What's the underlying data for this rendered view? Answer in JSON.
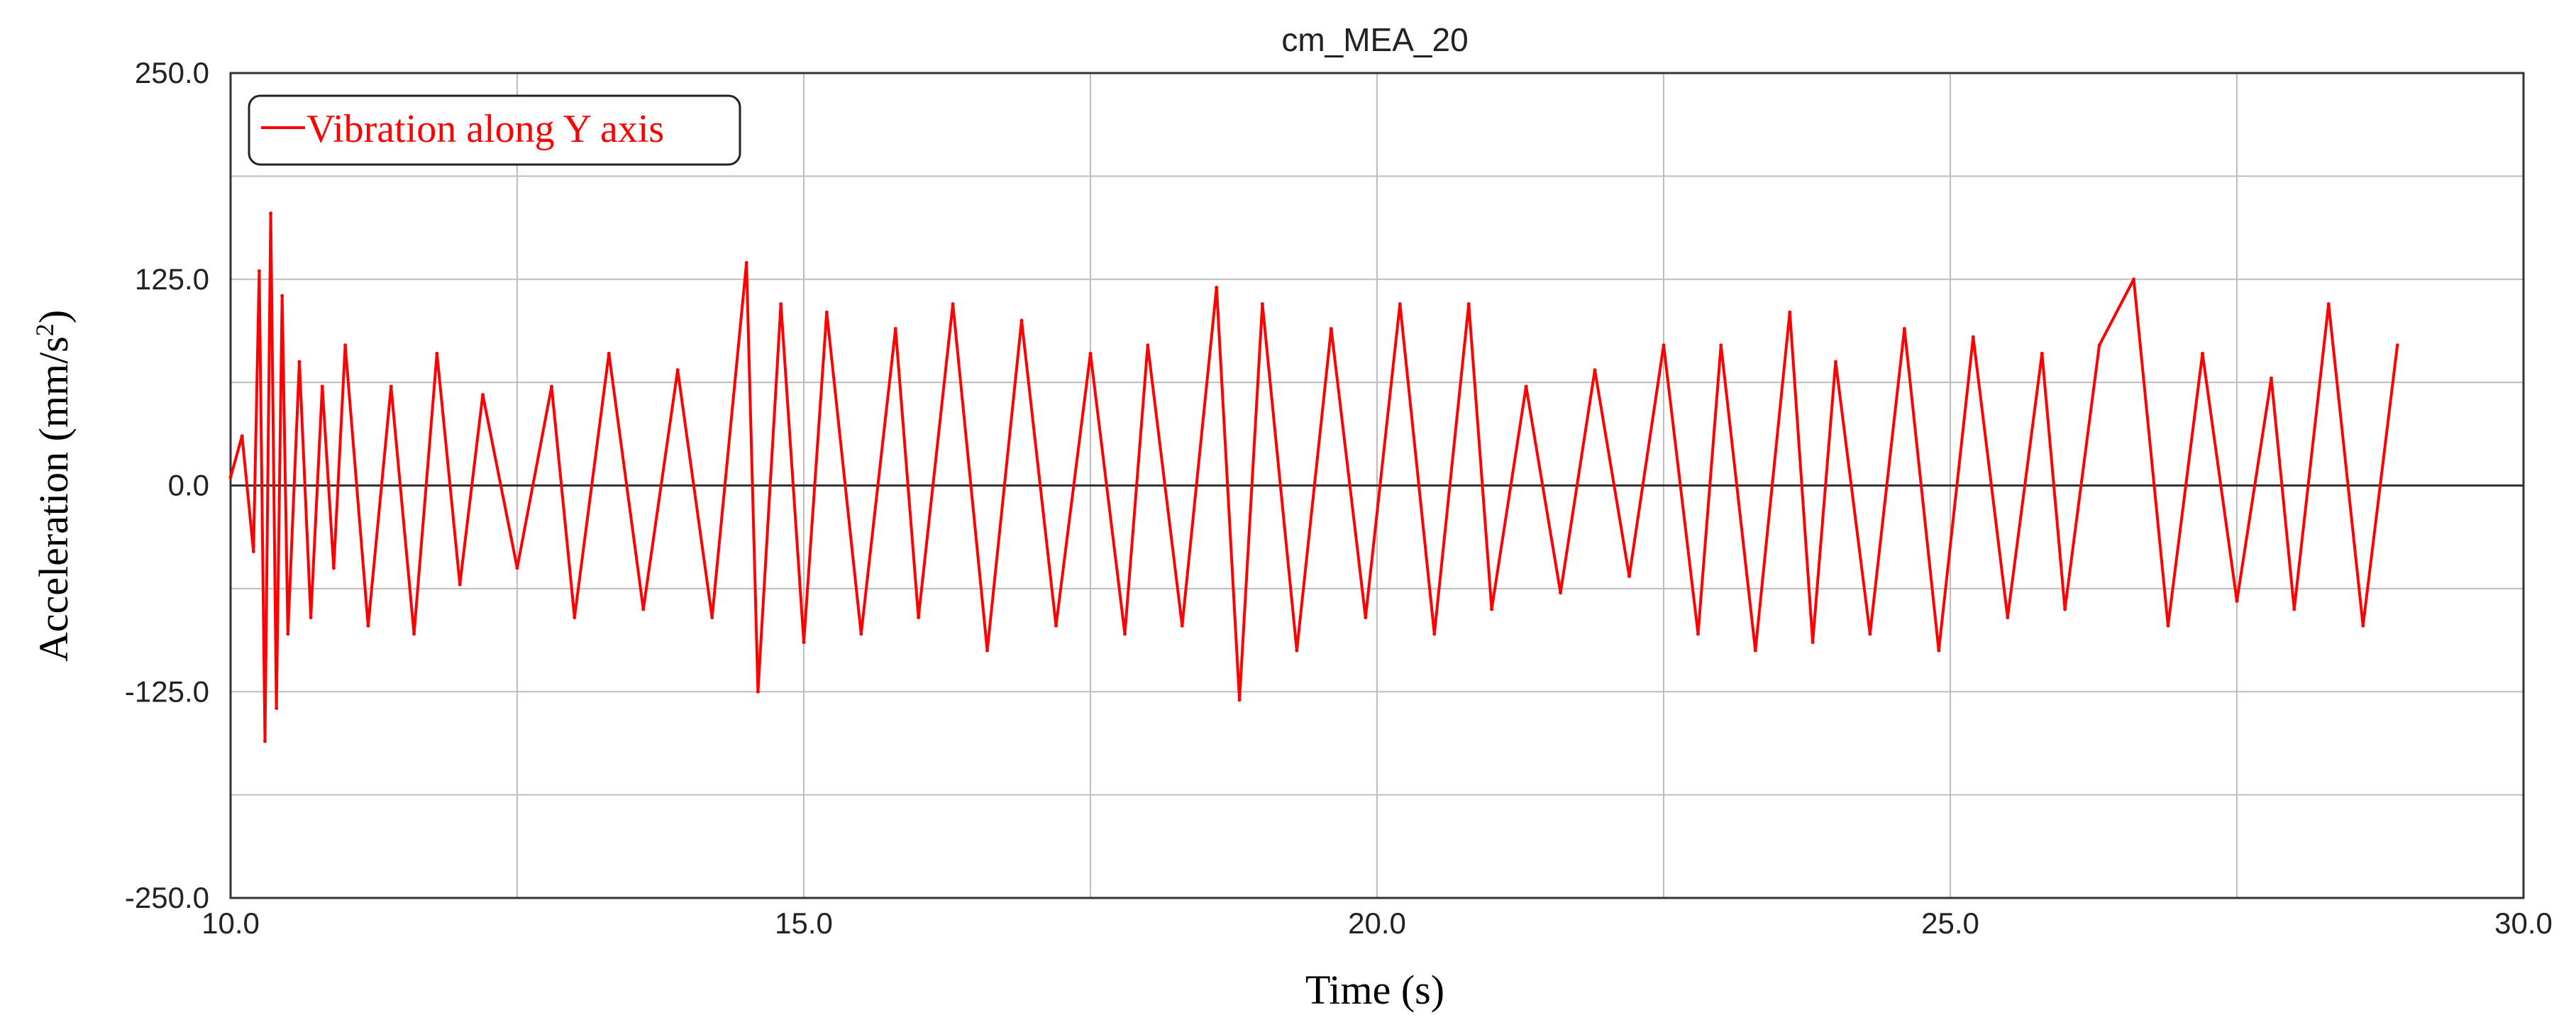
{
  "chart_data": {
    "type": "line",
    "title": "cm_MEA_20",
    "xlabel": "Time (s)",
    "ylabel": "Acceleration (mm/s",
    "ylabel_sup": "2",
    "ylabel_close": ")",
    "xlim": [
      10.0,
      30.0
    ],
    "ylim": [
      -250.0,
      250.0
    ],
    "xticks": [
      "10.0",
      "15.0",
      "20.0",
      "25.0",
      "30.0"
    ],
    "xtick_values": [
      10,
      15,
      20,
      25,
      30
    ],
    "yticks": [
      "250.0",
      "125.0",
      "0.0",
      "-125.0",
      "-250.0"
    ],
    "ytick_values": [
      250,
      125,
      0,
      -125,
      -250
    ],
    "grid": true,
    "legend_position": "top-left",
    "series": [
      {
        "name": "Vibration along Y axis",
        "color": "#ff0000",
        "x": [
          10.0,
          10.1,
          10.2,
          10.25,
          10.3,
          10.35,
          10.4,
          10.45,
          10.5,
          10.6,
          10.7,
          10.8,
          10.9,
          11.0,
          11.2,
          11.4,
          11.6,
          11.8,
          12.0,
          12.2,
          12.5,
          12.8,
          13.0,
          13.3,
          13.6,
          13.9,
          14.2,
          14.5,
          14.6,
          14.8,
          15.0,
          15.2,
          15.5,
          15.8,
          16.0,
          16.3,
          16.6,
          16.9,
          17.2,
          17.5,
          17.8,
          18.0,
          18.3,
          18.6,
          18.8,
          19.0,
          19.3,
          19.6,
          19.9,
          20.2,
          20.5,
          20.8,
          21.0,
          21.3,
          21.6,
          21.9,
          22.2,
          22.5,
          22.8,
          23.0,
          23.3,
          23.6,
          23.8,
          24.0,
          24.3,
          24.6,
          24.9,
          25.2,
          25.5,
          25.8,
          26.0,
          26.3,
          26.6,
          26.9,
          27.2,
          27.5,
          27.8,
          28.0,
          28.3,
          28.6,
          28.9
        ],
        "y": [
          5,
          30,
          -40,
          130,
          -155,
          165,
          -135,
          115,
          -90,
          75,
          -80,
          60,
          -50,
          85,
          -85,
          60,
          -90,
          80,
          -60,
          55,
          -50,
          60,
          -80,
          80,
          -75,
          70,
          -80,
          135,
          -125,
          110,
          -95,
          105,
          -90,
          95,
          -80,
          110,
          -100,
          100,
          -85,
          80,
          -90,
          85,
          -85,
          120,
          -130,
          110,
          -100,
          95,
          -80,
          110,
          -90,
          110,
          -75,
          60,
          -65,
          70,
          -55,
          85,
          -90,
          85,
          -100,
          105,
          -95,
          75,
          -90,
          95,
          -100,
          90,
          -80,
          80,
          -75,
          85,
          125,
          -85,
          80,
          -70,
          65,
          -75,
          110,
          -85,
          85
        ]
      }
    ]
  }
}
